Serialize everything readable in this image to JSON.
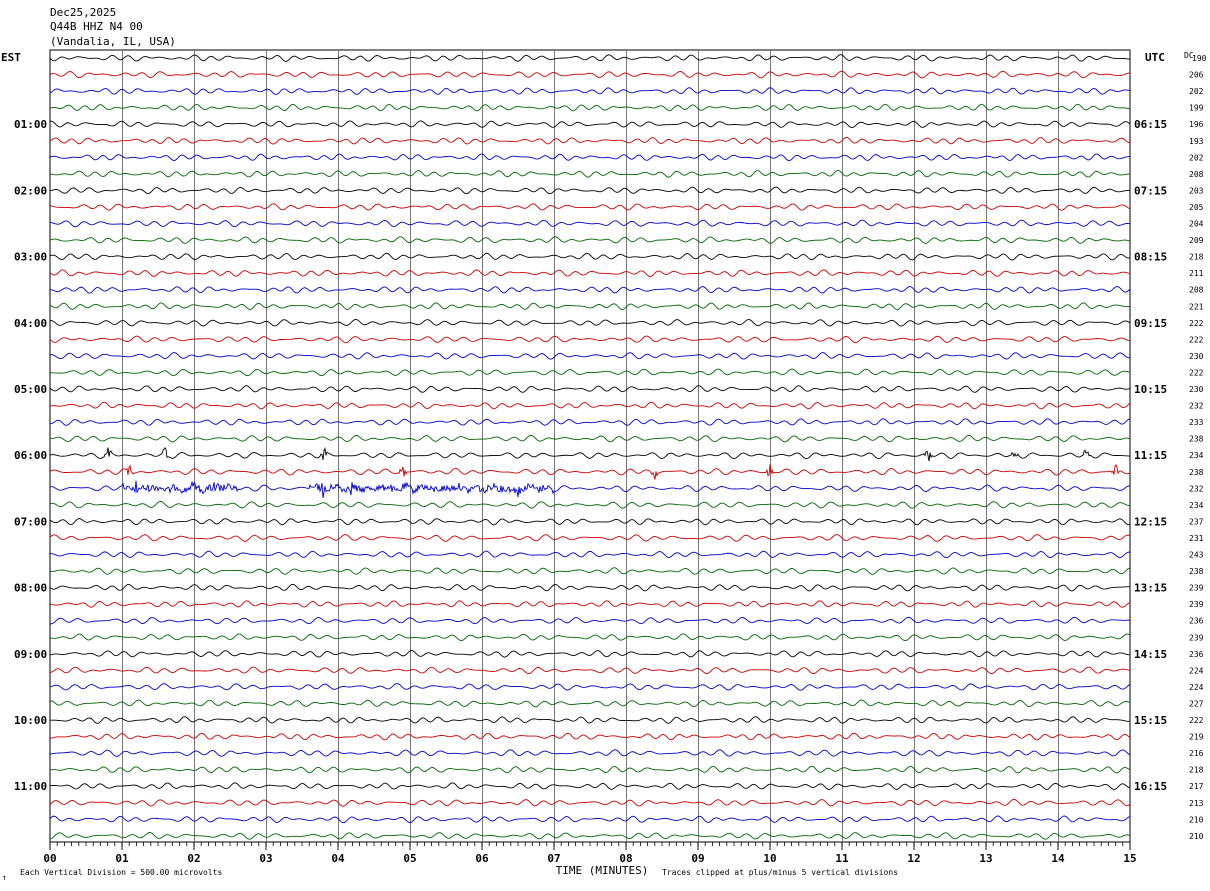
{
  "header": {
    "date": "Dec25,2025",
    "station": "Q44B HHZ N4 00",
    "location": "(Vandalia, IL, USA)",
    "tz_left": "EST",
    "tz_right": "UTC",
    "dc_label": "DC"
  },
  "chart_data": {
    "type": "line",
    "title": "",
    "xlabel": "TIME (MINUTES)",
    "xlim": [
      0,
      15
    ],
    "x_ticks": [
      "00",
      "01",
      "02",
      "03",
      "04",
      "05",
      "06",
      "07",
      "08",
      "09",
      "10",
      "11",
      "12",
      "13",
      "14",
      "15"
    ],
    "row_minutes": 15,
    "trace_colors": [
      "#000000",
      "#cc0000",
      "#0000cc",
      "#006600"
    ],
    "left_hour_labels": [
      "01:00",
      "02:00",
      "03:00",
      "04:00",
      "05:00",
      "06:00",
      "07:00",
      "08:00",
      "09:00",
      "10:00",
      "11:00"
    ],
    "right_hour_labels": [
      "06:15",
      "07:15",
      "08:15",
      "09:15",
      "10:15",
      "11:15",
      "12:15",
      "13:15",
      "14:15",
      "15:15",
      "16:15"
    ],
    "dc_offsets": [
      190,
      206,
      202,
      199,
      196,
      193,
      202,
      208,
      203,
      205,
      204,
      209,
      218,
      211,
      208,
      221,
      222,
      222,
      230,
      222,
      230,
      232,
      233,
      238,
      234,
      238,
      232,
      234,
      237,
      231,
      243,
      238,
      239,
      239,
      236,
      239,
      236,
      224,
      224,
      227,
      222,
      219,
      216,
      218,
      217,
      213,
      210,
      210
    ],
    "events": [
      {
        "row": 24,
        "minutes": [
          0.8,
          1.6,
          3.8,
          12.2,
          13.4,
          14.4
        ]
      },
      {
        "row": 25,
        "minutes": [
          1.1,
          4.9,
          8.4,
          10.0,
          14.8
        ]
      },
      {
        "row": 26,
        "minutes": [
          1.2,
          2.3,
          3.8,
          4.2,
          6.5
        ]
      }
    ]
  },
  "footer": {
    "scale_note": "Each Vertical Division =  500.00 microvolts",
    "clip_note": "Traces clipped at plus/minus 5 vertical divisions",
    "corner_mark": "↑"
  }
}
